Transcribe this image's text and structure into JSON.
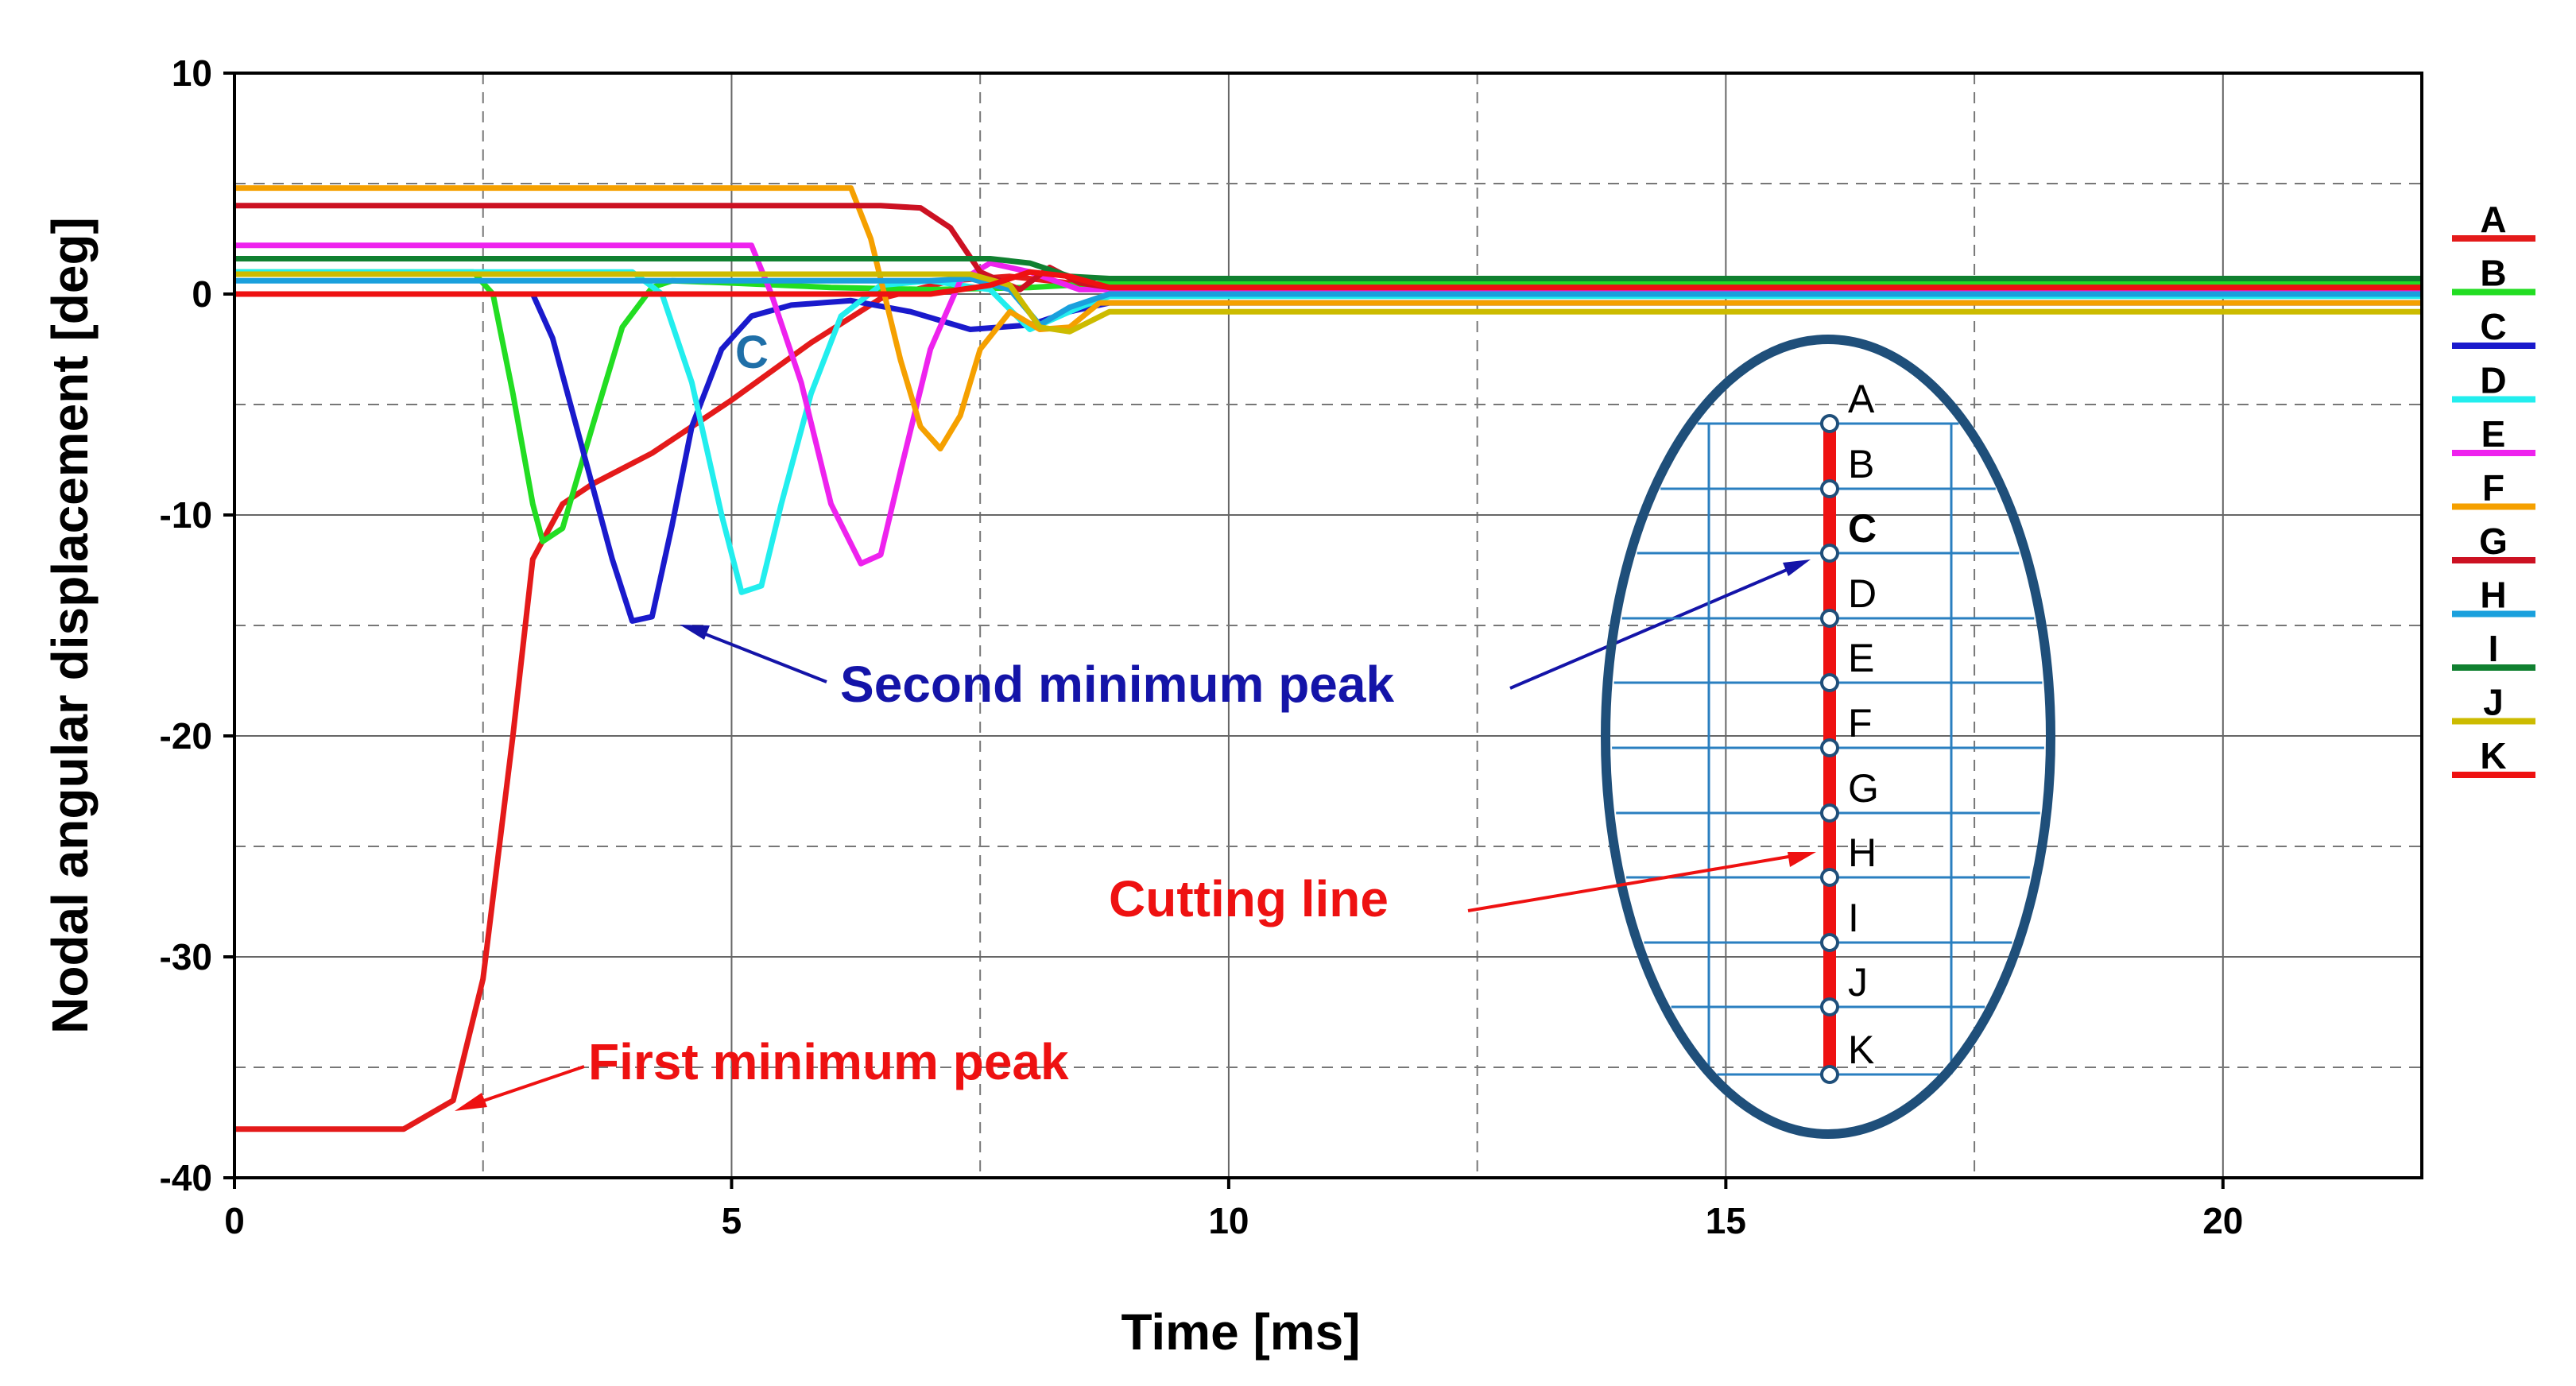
{
  "chart_data": {
    "type": "line",
    "title": "",
    "xlabel": "Time [ms]",
    "ylabel": "Nodal angular displacement [deg]",
    "xlim": [
      0,
      22
    ],
    "ylim": [
      -40,
      10
    ],
    "xticks": [
      0,
      5,
      10,
      15,
      20
    ],
    "xtick_labels": [
      "0",
      "5",
      "10",
      "15",
      "20"
    ],
    "yticks": [
      10,
      0,
      -10,
      -20,
      -30,
      -40
    ],
    "ytick_labels": [
      "10",
      "0",
      "-10",
      "-20",
      "-30",
      "-40"
    ],
    "x_gridlines": [
      2.5,
      5,
      7.5,
      10,
      12.5,
      15,
      17.5,
      20
    ],
    "y_gridlines": [
      5,
      0,
      -5,
      -10,
      -15,
      -20,
      -25,
      -30,
      -35
    ],
    "grid": true,
    "legend_position": "right",
    "series": [
      {
        "name": "A",
        "color": "#e41a1a",
        "x": [
          0,
          1.7,
          2.2,
          2.5,
          2.8,
          3.0,
          3.3,
          3.6,
          4.2,
          5.0,
          5.8,
          6.5,
          7.2,
          7.8,
          8.4,
          8.8,
          22
        ],
        "y": [
          -37.8,
          -37.8,
          -36.5,
          -31,
          -20,
          -12,
          -9.5,
          -8.6,
          -7.2,
          -4.8,
          -2.2,
          -0.2,
          0.6,
          0.8,
          0.5,
          0.4,
          0.4
        ]
      },
      {
        "name": "B",
        "color": "#22dd22",
        "x": [
          0,
          2.4,
          2.6,
          2.8,
          3.0,
          3.1,
          3.3,
          3.6,
          3.9,
          4.2,
          4.4,
          5.0,
          6.0,
          7.0,
          8.0,
          8.8,
          22
        ],
        "y": [
          1.0,
          1.0,
          0,
          -4.5,
          -9.5,
          -11.2,
          -10.6,
          -6,
          -1.5,
          0.3,
          0.6,
          0.5,
          0.3,
          0.2,
          0.3,
          0.5,
          0.5
        ]
      },
      {
        "name": "C",
        "color": "#1a1acc",
        "x": [
          0,
          3.0,
          3.2,
          3.5,
          3.8,
          4.0,
          4.2,
          4.4,
          4.6,
          4.9,
          5.2,
          5.6,
          6.2,
          6.8,
          7.4,
          8.0,
          8.4,
          8.8,
          22
        ],
        "y": [
          0,
          0,
          -2,
          -7,
          -12,
          -14.8,
          -14.6,
          -10.5,
          -6,
          -2.5,
          -1,
          -0.5,
          -0.3,
          -0.8,
          -1.6,
          -1.4,
          -0.8,
          -0.4,
          -0.4
        ]
      },
      {
        "name": "D",
        "color": "#22eeee",
        "x": [
          0,
          4.0,
          4.3,
          4.6,
          4.9,
          5.1,
          5.3,
          5.5,
          5.8,
          6.1,
          6.5,
          7.0,
          7.6,
          8.0,
          8.5,
          8.8,
          22
        ],
        "y": [
          1.0,
          1.0,
          0,
          -4,
          -10,
          -13.5,
          -13.2,
          -9.5,
          -4.5,
          -1,
          0.4,
          0.6,
          0.2,
          -1.6,
          -0.6,
          -0.1,
          -0.1
        ]
      },
      {
        "name": "E",
        "color": "#ee22ee",
        "x": [
          0,
          5.2,
          5.4,
          5.7,
          6.0,
          6.3,
          6.5,
          6.7,
          7.0,
          7.3,
          7.6,
          8.0,
          8.5,
          8.8,
          22
        ],
        "y": [
          2.2,
          2.2,
          0,
          -4,
          -9.5,
          -12.2,
          -11.8,
          -8,
          -2.5,
          0.6,
          1.4,
          1.0,
          0.2,
          0.2,
          0.2
        ]
      },
      {
        "name": "F",
        "color": "#f5a000",
        "x": [
          0,
          6.2,
          6.4,
          6.7,
          6.9,
          7.1,
          7.3,
          7.5,
          7.8,
          8.1,
          8.4,
          8.7,
          22
        ],
        "y": [
          4.8,
          4.8,
          2.5,
          -3,
          -6,
          -7,
          -5.5,
          -2.5,
          -0.8,
          -1.6,
          -1.5,
          -0.4,
          -0.4
        ]
      },
      {
        "name": "G",
        "color": "#cc1122",
        "x": [
          0,
          6.5,
          6.9,
          7.2,
          7.5,
          7.9,
          8.2,
          8.5,
          8.8,
          22
        ],
        "y": [
          4.0,
          4.0,
          3.9,
          3.0,
          1.0,
          0.2,
          1.2,
          0.5,
          0.3,
          0.3
        ]
      },
      {
        "name": "H",
        "color": "#1aa0dd",
        "x": [
          0,
          7.0,
          7.4,
          7.8,
          8.1,
          8.4,
          8.8,
          22
        ],
        "y": [
          0.6,
          0.6,
          0.7,
          0.2,
          -1.4,
          -0.6,
          0.0,
          0.0
        ]
      },
      {
        "name": "I",
        "color": "#108030",
        "x": [
          0,
          7.6,
          8.0,
          8.4,
          8.8,
          22
        ],
        "y": [
          1.6,
          1.6,
          1.4,
          0.8,
          0.7,
          0.7
        ]
      },
      {
        "name": "J",
        "color": "#ccbb00",
        "x": [
          0,
          7.4,
          7.8,
          8.1,
          8.4,
          8.8,
          22
        ],
        "y": [
          0.9,
          0.9,
          0.4,
          -1.5,
          -1.7,
          -0.8,
          -0.8
        ]
      },
      {
        "name": "K",
        "color": "#ee1111",
        "x": [
          0,
          7.0,
          7.6,
          8.0,
          8.4,
          8.8,
          22
        ],
        "y": [
          0.0,
          0.0,
          0.4,
          1.0,
          0.8,
          0.3,
          0.3
        ]
      }
    ],
    "annotations": [
      {
        "name": "first-min",
        "text": "First minimum peak",
        "color": "#ee1111",
        "points_to": [
          2.25,
          -36.8
        ]
      },
      {
        "name": "second-min",
        "text": "Second minimum peak",
        "color": "#1414a8",
        "points_to": [
          4.3,
          -14.8
        ]
      },
      {
        "name": "c-marker",
        "text": "C",
        "color": "#1f6fa8"
      }
    ]
  },
  "inset": {
    "title": "Cutting line",
    "title_color": "#ee1111",
    "nodes": [
      "A",
      "B",
      "C",
      "D",
      "E",
      "F",
      "G",
      "H",
      "I",
      "J",
      "K"
    ],
    "highlight_node": "C",
    "highlight_color": "#1f6fa8",
    "ellipse_color": "#1f4f7a",
    "mesh_color": "#2a7fc0",
    "cut_color": "#ee1111"
  }
}
